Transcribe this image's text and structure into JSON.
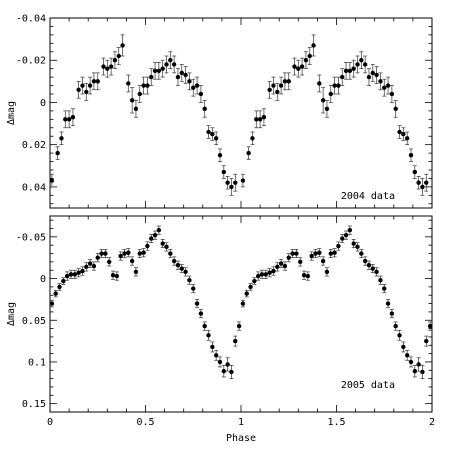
{
  "chart_data": [
    {
      "type": "scatter",
      "title": "",
      "xlabel": "",
      "ylabel": "Δmag",
      "annotation": "2004 data",
      "xlim": [
        0,
        2
      ],
      "ylim": [
        -0.04,
        0.05
      ],
      "y_inverted": true,
      "y_ticks": [
        -0.04,
        -0.02,
        0,
        0.02,
        0.04
      ],
      "y_tick_labels": [
        "-0.04",
        "-0.02",
        "0",
        "0.02",
        "0.04"
      ],
      "x_ticks": [
        0,
        0.5,
        1,
        1.5,
        2
      ],
      "grid": false,
      "error_bars": true,
      "points": [
        {
          "x": 0.01,
          "y": 0.037,
          "err": 0.003
        },
        {
          "x": 0.04,
          "y": 0.024,
          "err": 0.003
        },
        {
          "x": 0.06,
          "y": 0.017,
          "err": 0.003
        },
        {
          "x": 0.08,
          "y": 0.008,
          "err": 0.004
        },
        {
          "x": 0.1,
          "y": 0.008,
          "err": 0.004
        },
        {
          "x": 0.12,
          "y": 0.007,
          "err": 0.004
        },
        {
          "x": 0.15,
          "y": -0.006,
          "err": 0.004
        },
        {
          "x": 0.17,
          "y": -0.008,
          "err": 0.004
        },
        {
          "x": 0.19,
          "y": -0.005,
          "err": 0.004
        },
        {
          "x": 0.21,
          "y": -0.008,
          "err": 0.004
        },
        {
          "x": 0.23,
          "y": -0.01,
          "err": 0.004
        },
        {
          "x": 0.25,
          "y": -0.01,
          "err": 0.004
        },
        {
          "x": 0.28,
          "y": -0.017,
          "err": 0.004
        },
        {
          "x": 0.3,
          "y": -0.016,
          "err": 0.004
        },
        {
          "x": 0.32,
          "y": -0.017,
          "err": 0.004
        },
        {
          "x": 0.34,
          "y": -0.02,
          "err": 0.004
        },
        {
          "x": 0.36,
          "y": -0.022,
          "err": 0.004
        },
        {
          "x": 0.38,
          "y": -0.027,
          "err": 0.005
        },
        {
          "x": 0.41,
          "y": -0.009,
          "err": 0.004
        },
        {
          "x": 0.43,
          "y": -0.001,
          "err": 0.006
        },
        {
          "x": 0.45,
          "y": 0.003,
          "err": 0.004
        },
        {
          "x": 0.47,
          "y": -0.004,
          "err": 0.004
        },
        {
          "x": 0.49,
          "y": -0.008,
          "err": 0.004
        },
        {
          "x": 0.51,
          "y": -0.008,
          "err": 0.004
        },
        {
          "x": 0.53,
          "y": -0.012,
          "err": 0.004
        },
        {
          "x": 0.55,
          "y": -0.015,
          "err": 0.004
        },
        {
          "x": 0.57,
          "y": -0.015,
          "err": 0.004
        },
        {
          "x": 0.59,
          "y": -0.016,
          "err": 0.004
        },
        {
          "x": 0.61,
          "y": -0.018,
          "err": 0.004
        },
        {
          "x": 0.63,
          "y": -0.02,
          "err": 0.004
        },
        {
          "x": 0.65,
          "y": -0.018,
          "err": 0.004
        },
        {
          "x": 0.67,
          "y": -0.012,
          "err": 0.004
        },
        {
          "x": 0.69,
          "y": -0.014,
          "err": 0.004
        },
        {
          "x": 0.71,
          "y": -0.013,
          "err": 0.004
        },
        {
          "x": 0.73,
          "y": -0.01,
          "err": 0.004
        },
        {
          "x": 0.75,
          "y": -0.007,
          "err": 0.004
        },
        {
          "x": 0.77,
          "y": -0.008,
          "err": 0.004
        },
        {
          "x": 0.79,
          "y": -0.004,
          "err": 0.004
        },
        {
          "x": 0.81,
          "y": 0.003,
          "err": 0.004
        },
        {
          "x": 0.83,
          "y": 0.014,
          "err": 0.003
        },
        {
          "x": 0.85,
          "y": 0.015,
          "err": 0.003
        },
        {
          "x": 0.87,
          "y": 0.017,
          "err": 0.003
        },
        {
          "x": 0.89,
          "y": 0.025,
          "err": 0.003
        },
        {
          "x": 0.91,
          "y": 0.033,
          "err": 0.003
        },
        {
          "x": 0.93,
          "y": 0.038,
          "err": 0.003
        },
        {
          "x": 0.95,
          "y": 0.04,
          "err": 0.004
        },
        {
          "x": 0.97,
          "y": 0.038,
          "err": 0.004
        },
        {
          "x": 1.01,
          "y": 0.037,
          "err": 0.003
        },
        {
          "x": 1.04,
          "y": 0.024,
          "err": 0.003
        },
        {
          "x": 1.06,
          "y": 0.017,
          "err": 0.003
        },
        {
          "x": 1.08,
          "y": 0.008,
          "err": 0.004
        },
        {
          "x": 1.1,
          "y": 0.008,
          "err": 0.004
        },
        {
          "x": 1.12,
          "y": 0.007,
          "err": 0.004
        },
        {
          "x": 1.15,
          "y": -0.006,
          "err": 0.004
        },
        {
          "x": 1.17,
          "y": -0.008,
          "err": 0.004
        },
        {
          "x": 1.19,
          "y": -0.005,
          "err": 0.004
        },
        {
          "x": 1.21,
          "y": -0.008,
          "err": 0.004
        },
        {
          "x": 1.23,
          "y": -0.01,
          "err": 0.004
        },
        {
          "x": 1.25,
          "y": -0.01,
          "err": 0.004
        },
        {
          "x": 1.28,
          "y": -0.017,
          "err": 0.004
        },
        {
          "x": 1.3,
          "y": -0.016,
          "err": 0.004
        },
        {
          "x": 1.32,
          "y": -0.017,
          "err": 0.004
        },
        {
          "x": 1.34,
          "y": -0.02,
          "err": 0.004
        },
        {
          "x": 1.36,
          "y": -0.022,
          "err": 0.004
        },
        {
          "x": 1.38,
          "y": -0.027,
          "err": 0.005
        },
        {
          "x": 1.41,
          "y": -0.009,
          "err": 0.004
        },
        {
          "x": 1.43,
          "y": -0.001,
          "err": 0.006
        },
        {
          "x": 1.45,
          "y": 0.003,
          "err": 0.004
        },
        {
          "x": 1.47,
          "y": -0.004,
          "err": 0.004
        },
        {
          "x": 1.49,
          "y": -0.008,
          "err": 0.004
        },
        {
          "x": 1.51,
          "y": -0.008,
          "err": 0.004
        },
        {
          "x": 1.53,
          "y": -0.012,
          "err": 0.004
        },
        {
          "x": 1.55,
          "y": -0.015,
          "err": 0.004
        },
        {
          "x": 1.57,
          "y": -0.015,
          "err": 0.004
        },
        {
          "x": 1.59,
          "y": -0.016,
          "err": 0.004
        },
        {
          "x": 1.61,
          "y": -0.018,
          "err": 0.004
        },
        {
          "x": 1.63,
          "y": -0.02,
          "err": 0.004
        },
        {
          "x": 1.65,
          "y": -0.018,
          "err": 0.004
        },
        {
          "x": 1.67,
          "y": -0.012,
          "err": 0.004
        },
        {
          "x": 1.69,
          "y": -0.014,
          "err": 0.004
        },
        {
          "x": 1.71,
          "y": -0.013,
          "err": 0.004
        },
        {
          "x": 1.73,
          "y": -0.01,
          "err": 0.004
        },
        {
          "x": 1.75,
          "y": -0.007,
          "err": 0.004
        },
        {
          "x": 1.77,
          "y": -0.008,
          "err": 0.004
        },
        {
          "x": 1.79,
          "y": -0.004,
          "err": 0.004
        },
        {
          "x": 1.81,
          "y": 0.003,
          "err": 0.004
        },
        {
          "x": 1.83,
          "y": 0.014,
          "err": 0.003
        },
        {
          "x": 1.85,
          "y": 0.015,
          "err": 0.003
        },
        {
          "x": 1.87,
          "y": 0.017,
          "err": 0.003
        },
        {
          "x": 1.89,
          "y": 0.025,
          "err": 0.003
        },
        {
          "x": 1.91,
          "y": 0.033,
          "err": 0.003
        },
        {
          "x": 1.93,
          "y": 0.038,
          "err": 0.003
        },
        {
          "x": 1.95,
          "y": 0.04,
          "err": 0.004
        },
        {
          "x": 1.97,
          "y": 0.038,
          "err": 0.004
        }
      ]
    },
    {
      "type": "scatter",
      "title": "",
      "xlabel": "Phase",
      "ylabel": "Δmag",
      "annotation": "2005 data",
      "xlim": [
        0,
        2
      ],
      "ylim": [
        -0.075,
        0.16
      ],
      "y_inverted": true,
      "y_ticks": [
        -0.05,
        0,
        0.05,
        0.1,
        0.15
      ],
      "y_tick_labels": [
        "-0.05",
        "0",
        "0.05",
        "0.1",
        "0.15"
      ],
      "x_ticks": [
        0,
        0.5,
        1,
        1.5,
        2
      ],
      "x_tick_labels": [
        "0",
        "0.5",
        "1",
        "1.5",
        "2"
      ],
      "grid": false,
      "error_bars": true,
      "points": [
        {
          "x": 0.01,
          "y": 0.03,
          "err": 0.004
        },
        {
          "x": 0.03,
          "y": 0.018,
          "err": 0.004
        },
        {
          "x": 0.05,
          "y": 0.01,
          "err": 0.004
        },
        {
          "x": 0.07,
          "y": 0.003,
          "err": 0.004
        },
        {
          "x": 0.09,
          "y": -0.003,
          "err": 0.005
        },
        {
          "x": 0.11,
          "y": -0.005,
          "err": 0.005
        },
        {
          "x": 0.13,
          "y": -0.005,
          "err": 0.005
        },
        {
          "x": 0.15,
          "y": -0.007,
          "err": 0.005
        },
        {
          "x": 0.17,
          "y": -0.009,
          "err": 0.005
        },
        {
          "x": 0.19,
          "y": -0.014,
          "err": 0.005
        },
        {
          "x": 0.21,
          "y": -0.018,
          "err": 0.005
        },
        {
          "x": 0.23,
          "y": -0.015,
          "err": 0.005
        },
        {
          "x": 0.25,
          "y": -0.025,
          "err": 0.005
        },
        {
          "x": 0.27,
          "y": -0.03,
          "err": 0.005
        },
        {
          "x": 0.29,
          "y": -0.03,
          "err": 0.005
        },
        {
          "x": 0.31,
          "y": -0.02,
          "err": 0.005
        },
        {
          "x": 0.33,
          "y": -0.004,
          "err": 0.005
        },
        {
          "x": 0.35,
          "y": -0.003,
          "err": 0.005
        },
        {
          "x": 0.37,
          "y": -0.027,
          "err": 0.005
        },
        {
          "x": 0.39,
          "y": -0.03,
          "err": 0.005
        },
        {
          "x": 0.41,
          "y": -0.031,
          "err": 0.005
        },
        {
          "x": 0.43,
          "y": -0.021,
          "err": 0.005
        },
        {
          "x": 0.45,
          "y": -0.008,
          "err": 0.005
        },
        {
          "x": 0.47,
          "y": -0.03,
          "err": 0.005
        },
        {
          "x": 0.49,
          "y": -0.031,
          "err": 0.005
        },
        {
          "x": 0.51,
          "y": -0.039,
          "err": 0.005
        },
        {
          "x": 0.53,
          "y": -0.048,
          "err": 0.005
        },
        {
          "x": 0.55,
          "y": -0.052,
          "err": 0.005
        },
        {
          "x": 0.57,
          "y": -0.058,
          "err": 0.005
        },
        {
          "x": 0.59,
          "y": -0.042,
          "err": 0.005
        },
        {
          "x": 0.61,
          "y": -0.038,
          "err": 0.005
        },
        {
          "x": 0.63,
          "y": -0.03,
          "err": 0.005
        },
        {
          "x": 0.65,
          "y": -0.021,
          "err": 0.005
        },
        {
          "x": 0.67,
          "y": -0.016,
          "err": 0.005
        },
        {
          "x": 0.69,
          "y": -0.012,
          "err": 0.005
        },
        {
          "x": 0.71,
          "y": -0.008,
          "err": 0.005
        },
        {
          "x": 0.73,
          "y": 0.002,
          "err": 0.005
        },
        {
          "x": 0.75,
          "y": 0.012,
          "err": 0.005
        },
        {
          "x": 0.77,
          "y": 0.03,
          "err": 0.005
        },
        {
          "x": 0.79,
          "y": 0.042,
          "err": 0.005
        },
        {
          "x": 0.81,
          "y": 0.057,
          "err": 0.005
        },
        {
          "x": 0.83,
          "y": 0.068,
          "err": 0.006
        },
        {
          "x": 0.85,
          "y": 0.082,
          "err": 0.006
        },
        {
          "x": 0.87,
          "y": 0.092,
          "err": 0.006
        },
        {
          "x": 0.89,
          "y": 0.1,
          "err": 0.006
        },
        {
          "x": 0.91,
          "y": 0.111,
          "err": 0.007
        },
        {
          "x": 0.93,
          "y": 0.103,
          "err": 0.008
        },
        {
          "x": 0.95,
          "y": 0.112,
          "err": 0.008
        },
        {
          "x": 0.97,
          "y": 0.075,
          "err": 0.006
        },
        {
          "x": 0.99,
          "y": 0.057,
          "err": 0.005
        },
        {
          "x": 1.01,
          "y": 0.03,
          "err": 0.004
        },
        {
          "x": 1.03,
          "y": 0.018,
          "err": 0.004
        },
        {
          "x": 1.05,
          "y": 0.01,
          "err": 0.004
        },
        {
          "x": 1.07,
          "y": 0.003,
          "err": 0.004
        },
        {
          "x": 1.09,
          "y": -0.003,
          "err": 0.005
        },
        {
          "x": 1.11,
          "y": -0.005,
          "err": 0.005
        },
        {
          "x": 1.13,
          "y": -0.005,
          "err": 0.005
        },
        {
          "x": 1.15,
          "y": -0.007,
          "err": 0.005
        },
        {
          "x": 1.17,
          "y": -0.009,
          "err": 0.005
        },
        {
          "x": 1.19,
          "y": -0.014,
          "err": 0.005
        },
        {
          "x": 1.21,
          "y": -0.018,
          "err": 0.005
        },
        {
          "x": 1.23,
          "y": -0.015,
          "err": 0.005
        },
        {
          "x": 1.25,
          "y": -0.025,
          "err": 0.005
        },
        {
          "x": 1.27,
          "y": -0.03,
          "err": 0.005
        },
        {
          "x": 1.29,
          "y": -0.03,
          "err": 0.005
        },
        {
          "x": 1.31,
          "y": -0.02,
          "err": 0.005
        },
        {
          "x": 1.33,
          "y": -0.004,
          "err": 0.005
        },
        {
          "x": 1.35,
          "y": -0.003,
          "err": 0.005
        },
        {
          "x": 1.37,
          "y": -0.027,
          "err": 0.005
        },
        {
          "x": 1.39,
          "y": -0.03,
          "err": 0.005
        },
        {
          "x": 1.41,
          "y": -0.031,
          "err": 0.005
        },
        {
          "x": 1.43,
          "y": -0.021,
          "err": 0.005
        },
        {
          "x": 1.45,
          "y": -0.008,
          "err": 0.005
        },
        {
          "x": 1.47,
          "y": -0.03,
          "err": 0.005
        },
        {
          "x": 1.49,
          "y": -0.031,
          "err": 0.005
        },
        {
          "x": 1.51,
          "y": -0.039,
          "err": 0.005
        },
        {
          "x": 1.53,
          "y": -0.048,
          "err": 0.005
        },
        {
          "x": 1.55,
          "y": -0.052,
          "err": 0.005
        },
        {
          "x": 1.57,
          "y": -0.058,
          "err": 0.005
        },
        {
          "x": 1.59,
          "y": -0.042,
          "err": 0.005
        },
        {
          "x": 1.61,
          "y": -0.038,
          "err": 0.005
        },
        {
          "x": 1.63,
          "y": -0.03,
          "err": 0.005
        },
        {
          "x": 1.65,
          "y": -0.021,
          "err": 0.005
        },
        {
          "x": 1.67,
          "y": -0.016,
          "err": 0.005
        },
        {
          "x": 1.69,
          "y": -0.012,
          "err": 0.005
        },
        {
          "x": 1.71,
          "y": -0.008,
          "err": 0.005
        },
        {
          "x": 1.73,
          "y": 0.002,
          "err": 0.005
        },
        {
          "x": 1.75,
          "y": 0.012,
          "err": 0.005
        },
        {
          "x": 1.77,
          "y": 0.03,
          "err": 0.005
        },
        {
          "x": 1.79,
          "y": 0.042,
          "err": 0.005
        },
        {
          "x": 1.81,
          "y": 0.057,
          "err": 0.005
        },
        {
          "x": 1.83,
          "y": 0.068,
          "err": 0.006
        },
        {
          "x": 1.85,
          "y": 0.082,
          "err": 0.006
        },
        {
          "x": 1.87,
          "y": 0.092,
          "err": 0.006
        },
        {
          "x": 1.89,
          "y": 0.1,
          "err": 0.006
        },
        {
          "x": 1.91,
          "y": 0.111,
          "err": 0.007
        },
        {
          "x": 1.93,
          "y": 0.103,
          "err": 0.008
        },
        {
          "x": 1.95,
          "y": 0.112,
          "err": 0.008
        },
        {
          "x": 1.97,
          "y": 0.075,
          "err": 0.006
        },
        {
          "x": 1.99,
          "y": 0.057,
          "err": 0.005
        }
      ]
    }
  ]
}
